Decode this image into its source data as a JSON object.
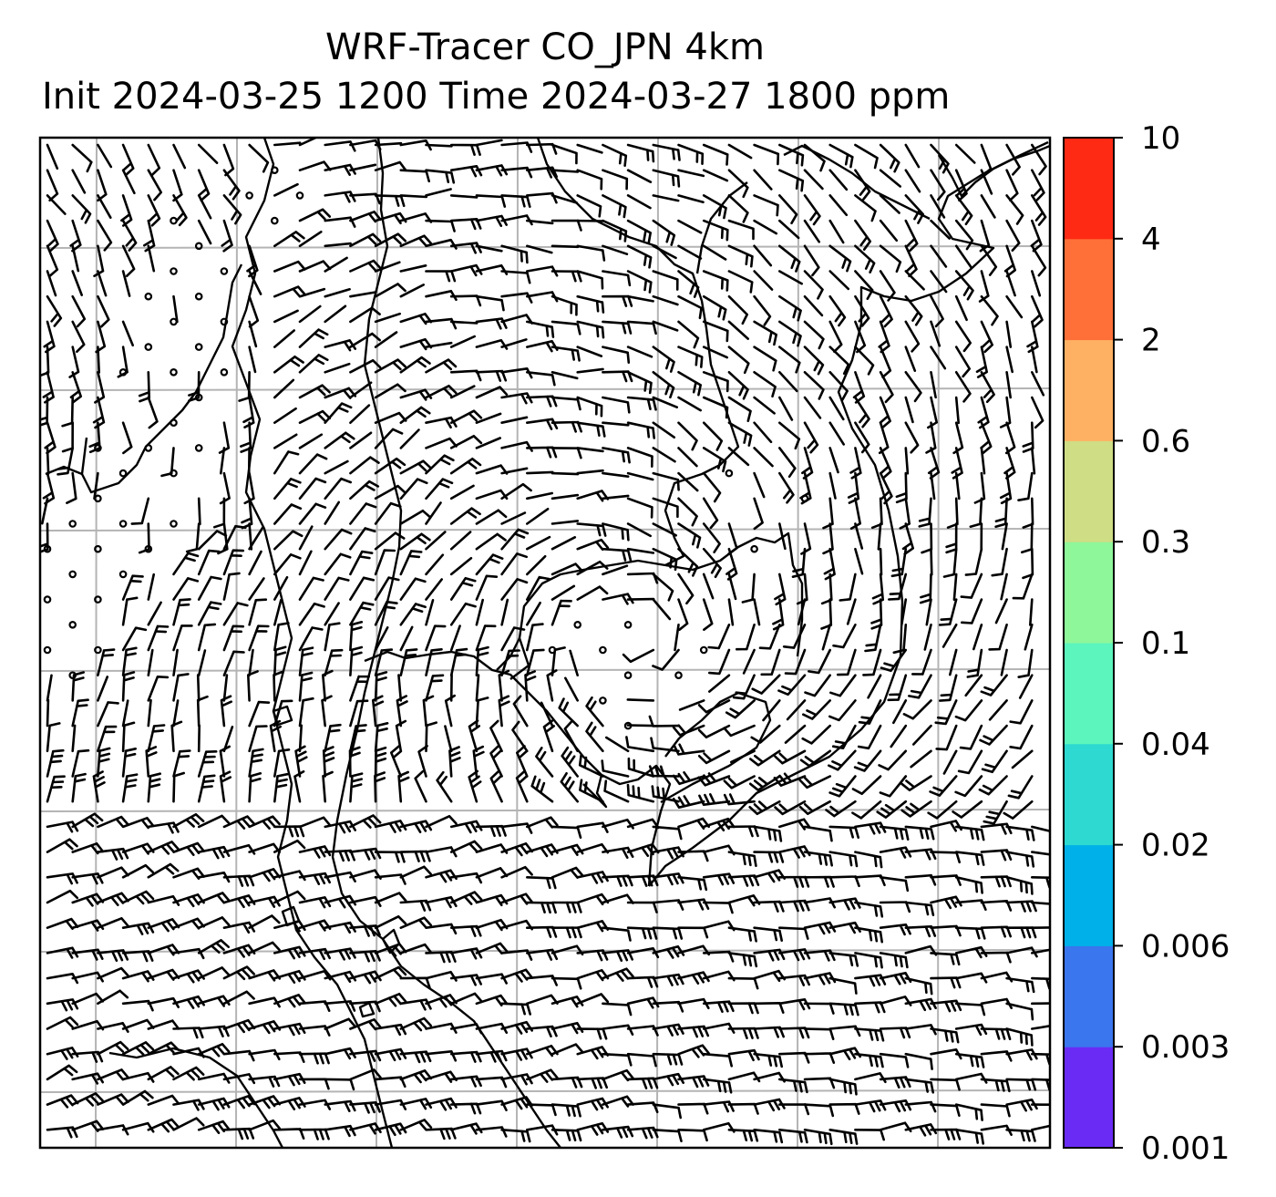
{
  "title_line1": "WRF-Tracer CO_JPN 4km",
  "title_line2": "Init 2024-03-25 1200 Time 2024-03-27 1800 ppm",
  "colorbar": {
    "levels": [
      "0.001",
      "0.003",
      "0.006",
      "0.02",
      "0.04",
      "0.1",
      "0.3",
      "0.6",
      "2",
      "4",
      "10"
    ],
    "colors": [
      "#6a2cf5",
      "#3a76ee",
      "#00b0e8",
      "#2dd9d0",
      "#5cf5be",
      "#8ef79a",
      "#cfdd84",
      "#ffb163",
      "#ff7038",
      "#ff2a14"
    ]
  },
  "map": {
    "field": "wind barbs",
    "grid": true
  }
}
